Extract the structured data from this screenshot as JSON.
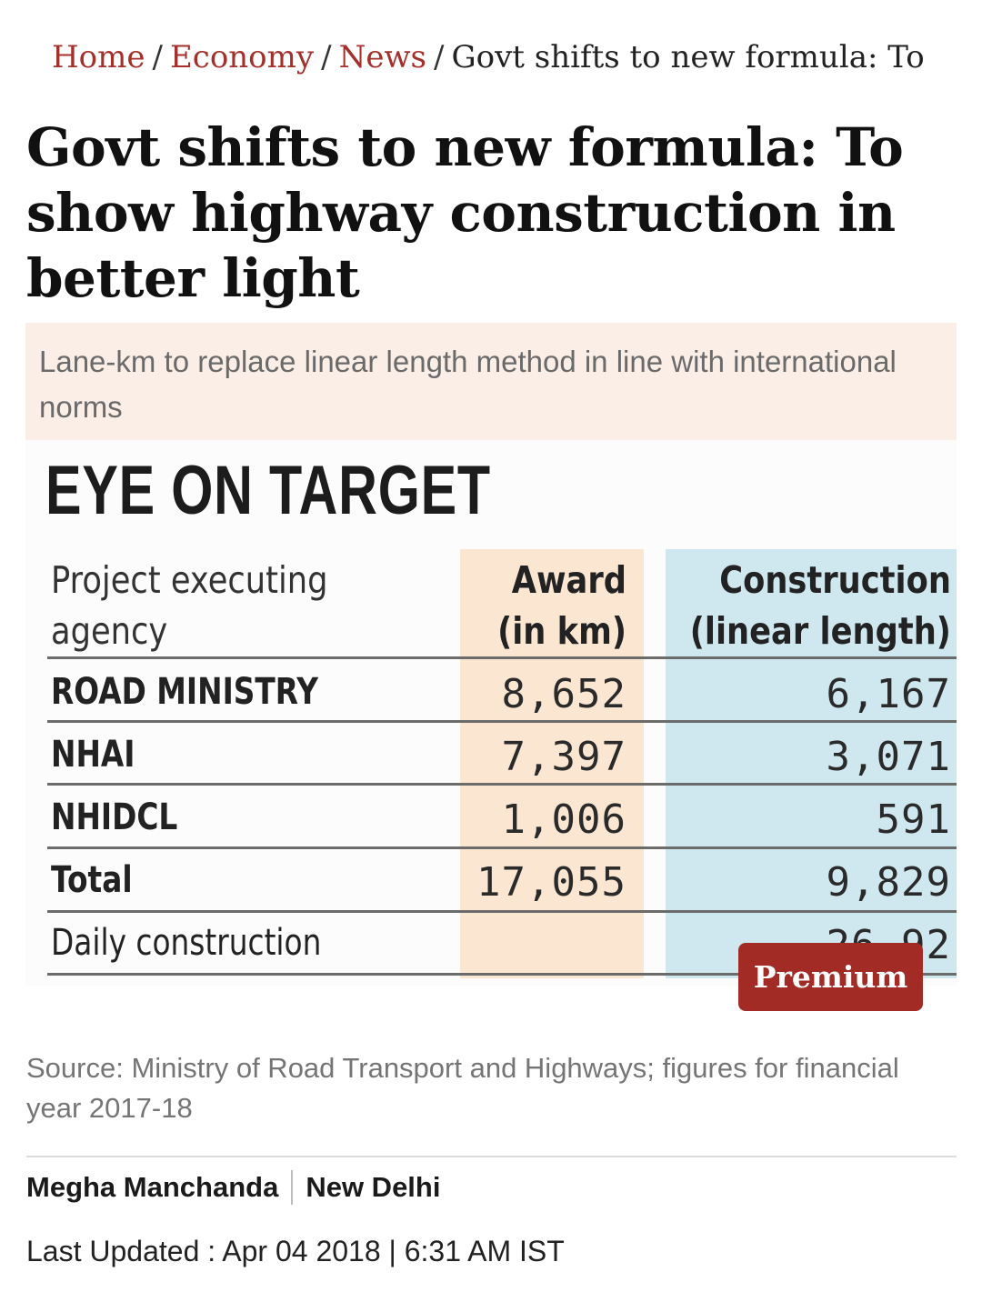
{
  "breadcrumb": {
    "items": [
      "Home",
      "Economy",
      "News"
    ],
    "separator": "/",
    "current": "Govt shifts to new formula: To show highway construction in better light"
  },
  "article": {
    "headline": "Govt shifts to new formula: To show highway construction in better light",
    "summary": "Lane-km to replace linear length method in line with international norms",
    "source_caption": "Source: Ministry of Road Transport and Highways; figures for financial year 2017-18",
    "author": "Megha Manchanda",
    "location": "New Delhi",
    "updated": "Last Updated : Apr 04 2018 | 6:31 AM IST"
  },
  "figure": {
    "title": "EYE ON TARGET",
    "headers": {
      "agency": [
        "Project executing",
        "agency"
      ],
      "award": [
        "Award",
        "(in km)"
      ],
      "construction": [
        "Construction",
        "(linear length)"
      ]
    },
    "rows": [
      {
        "label": "ROAD MINISTRY",
        "award": "8,652",
        "construction": "6,167"
      },
      {
        "label": "NHAI",
        "award": "7,397",
        "construction": "3,071"
      },
      {
        "label": "NHIDCL",
        "award": "1,006",
        "construction": "591"
      },
      {
        "label": "Total",
        "award": "17,055",
        "construction": "9,829"
      },
      {
        "label": "Daily construction",
        "award": "",
        "construction": "26.92"
      }
    ],
    "premium_label": "Premium"
  },
  "colors": {
    "accent": "#a3302b",
    "summary_bg": "#fbeee6",
    "award_band": "#fbe6d2",
    "construction_band": "#cfe8ef",
    "premium_bg": "#a32b26"
  }
}
